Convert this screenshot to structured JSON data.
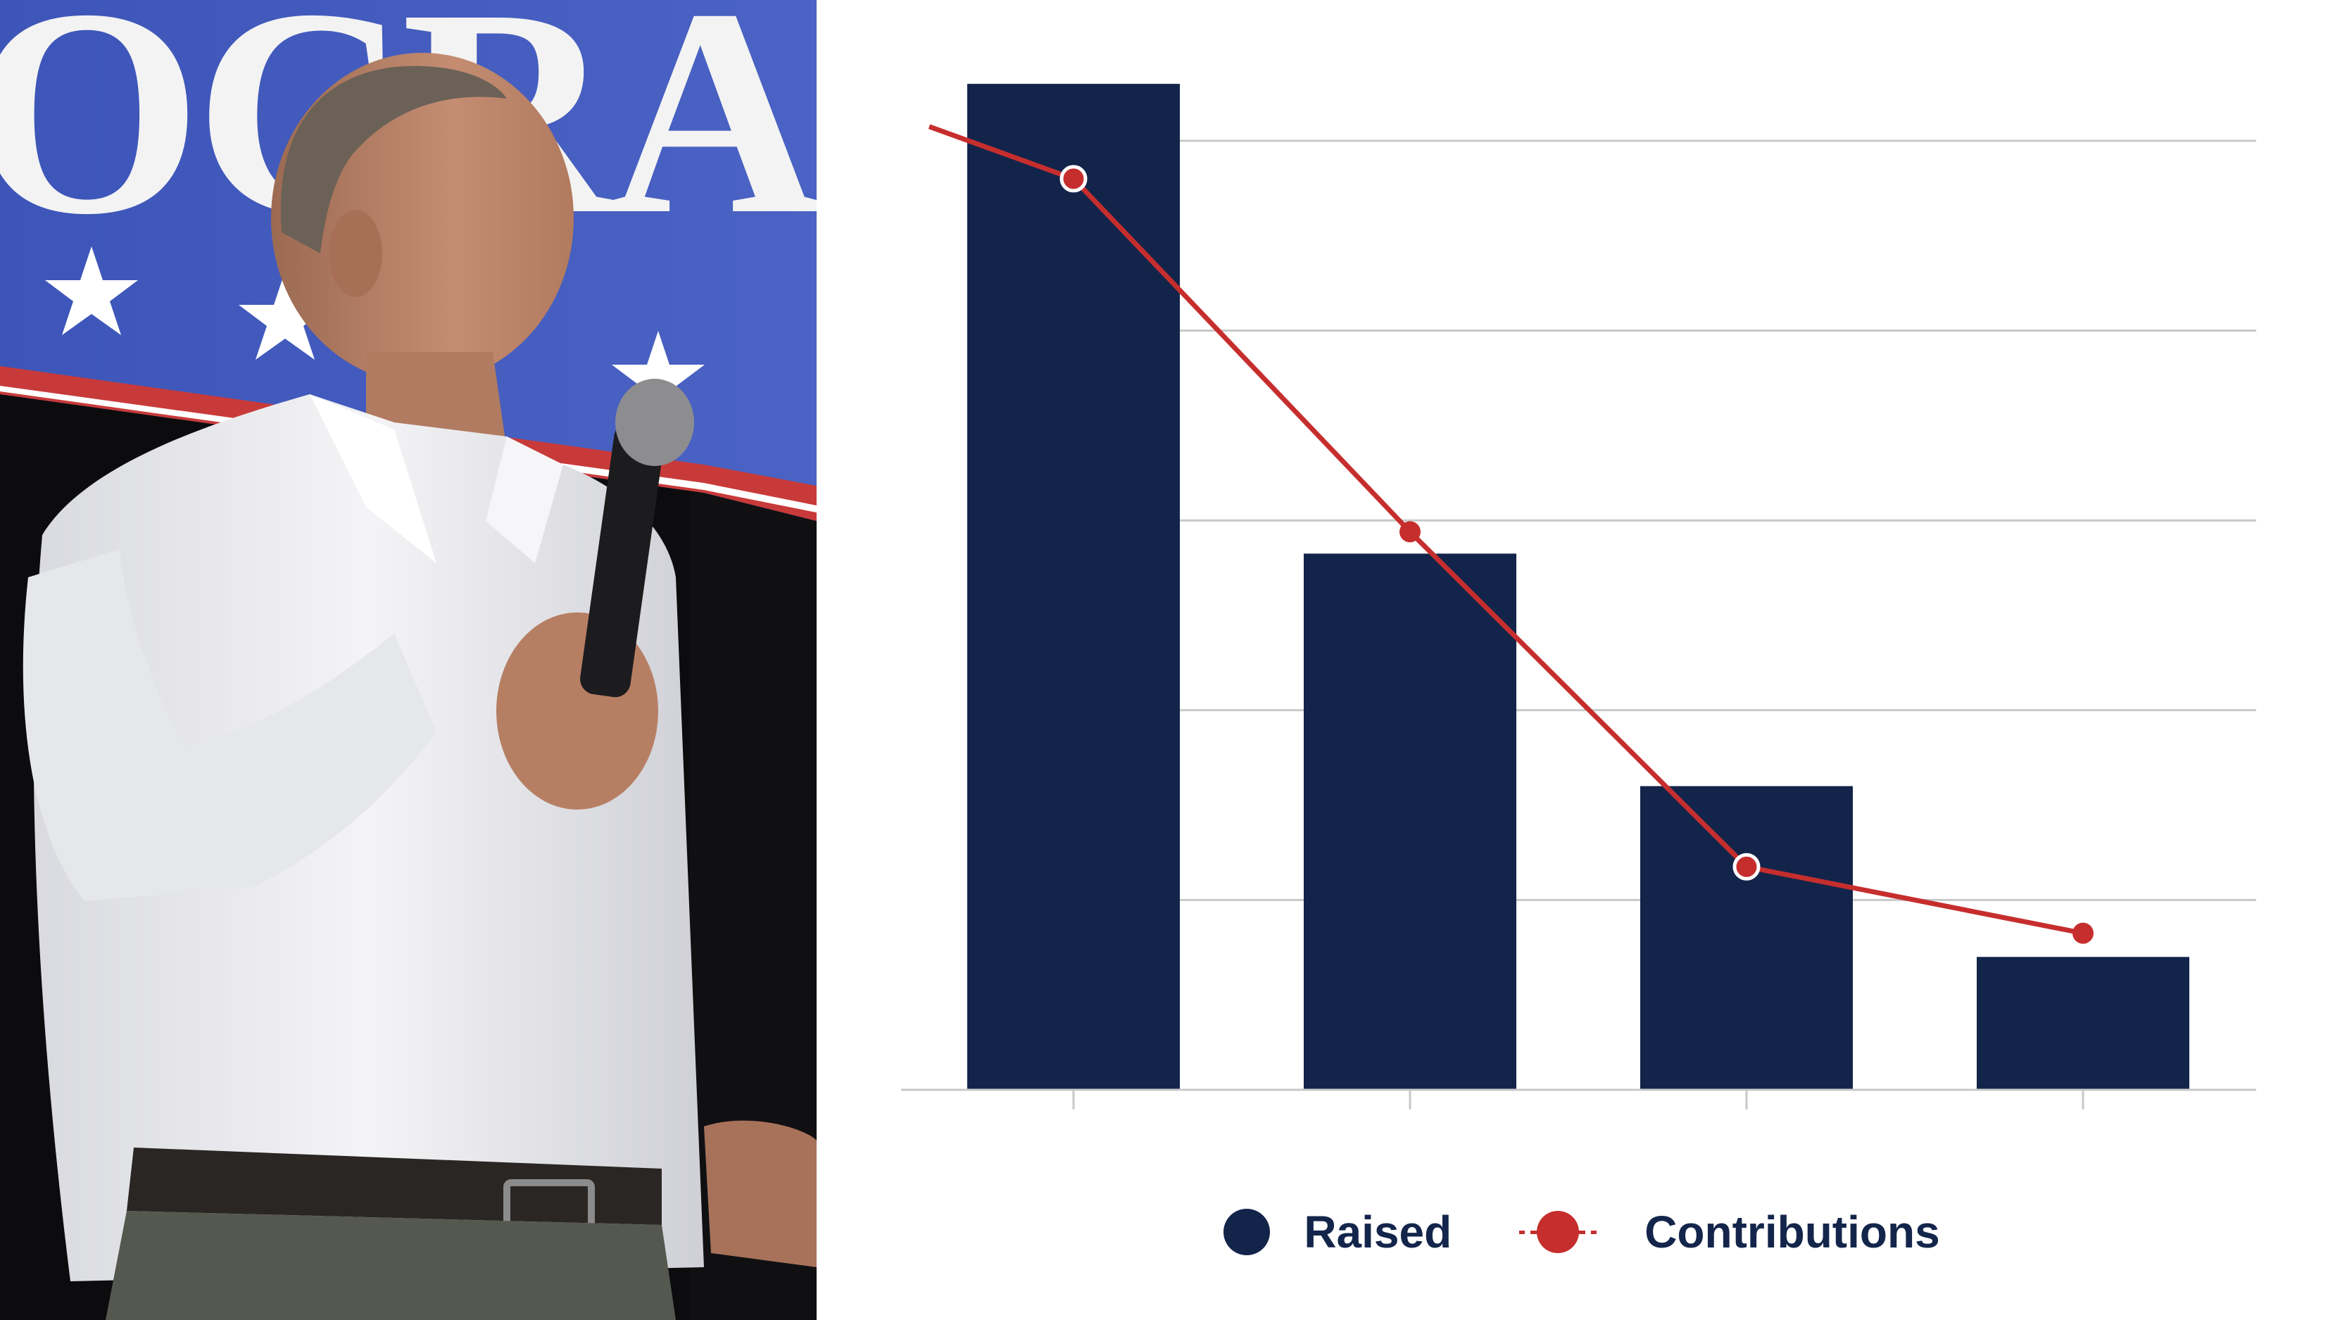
{
  "photo": {
    "description_icon": "speaker-photo",
    "banner_text": "OCRA"
  },
  "colors": {
    "raised": "#13244a",
    "contributions": "#c62e2e",
    "grid": "#c8c8c8",
    "legend_text": "#13254a"
  },
  "chart_data": {
    "type": "bar",
    "categories": [
      "",
      "",
      "",
      ""
    ],
    "ylim": [
      0,
      100
    ],
    "y_ticks": [
      0,
      20,
      40,
      60,
      80,
      100
    ],
    "grid": true,
    "legend_placement": "bottom-center",
    "title": "",
    "xlabel": "",
    "ylabel": "",
    "series": [
      {
        "name": "Raised",
        "type": "bar",
        "values": [
          106,
          56.5,
          32,
          14
        ]
      },
      {
        "name": "Contributions",
        "type": "line",
        "values": [
          96,
          58.8,
          23.5,
          16.5
        ],
        "lead_in_value": 101.5,
        "hollow_markers": [
          0,
          2
        ]
      }
    ]
  },
  "legend": {
    "raised_label": "Raised",
    "contributions_label": "Contributions"
  }
}
